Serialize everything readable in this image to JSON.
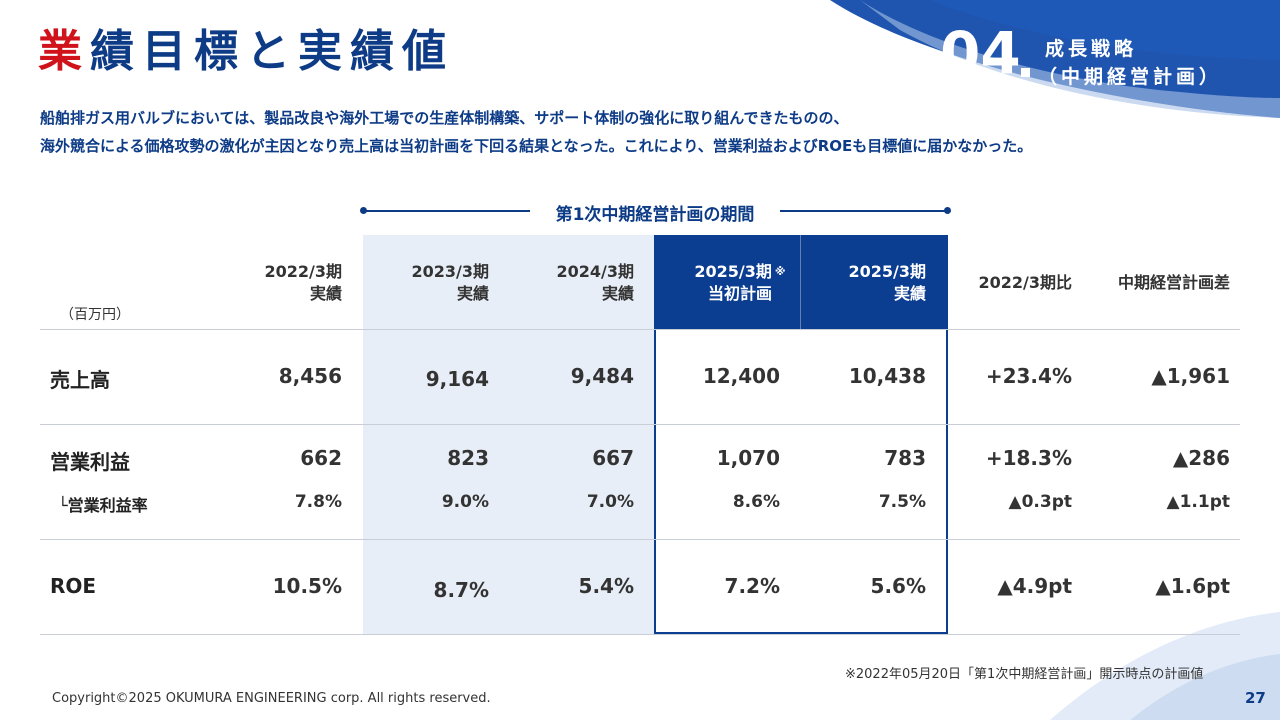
{
  "title": {
    "accent": "業",
    "rest": "績目標と実績値"
  },
  "section": {
    "number": "04",
    "line1": "成長戦略",
    "line2": "（中期経営計画）"
  },
  "intro": {
    "line1": "船舶排ガス用バルブにおいては、製品改良や海外工場での生産体制構築、サポート体制の強化に取り組んできたものの、",
    "line2": "海外競合による価格攻勢の激化が主因となり売上高は当初計画を下回る結果となった。これにより、営業利益およびROEも目標値に届かなかった。"
  },
  "period_label": "第1次中期経営計画の期間",
  "table": {
    "unit": "（百万円）",
    "headers": [
      {
        "l1": "2022/3期",
        "l2": "実績"
      },
      {
        "l1": "2023/3期",
        "l2": "実績"
      },
      {
        "l1": "2024/3期",
        "l2": "実績"
      },
      {
        "l1": "2025/3期",
        "mark": "※",
        "l2": "当初計画"
      },
      {
        "l1": "2025/3期",
        "l2": "実績"
      },
      {
        "l1": "2022/3期比"
      },
      {
        "l1": "中期経営計画差"
      }
    ],
    "rows": {
      "sales": {
        "label": "売上高",
        "values": [
          "8,456",
          "9,164",
          "9,484",
          "12,400",
          "10,438",
          "+23.4%",
          "▲1,961"
        ]
      },
      "op": {
        "label": "営業利益",
        "values": [
          "662",
          "823",
          "667",
          "1,070",
          "783",
          "+18.3%",
          "▲286"
        ]
      },
      "margin": {
        "label": "└営業利益率",
        "values": [
          "7.8%",
          "9.0%",
          "7.0%",
          "8.6%",
          "7.5%",
          "▲0.3pt",
          "▲1.1pt"
        ]
      },
      "roe": {
        "label": "ROE",
        "values": [
          "10.5%",
          "8.7%",
          "5.4%",
          "7.2%",
          "5.6%",
          "▲4.9pt",
          "▲1.6pt"
        ]
      }
    }
  },
  "footnote": "※2022年05月20日「第1次中期経営計画」開示時点の計画値",
  "copyright": "Copyright©2025 OKUMURA ENGINEERING corp. All rights reserved.",
  "page": "27"
}
